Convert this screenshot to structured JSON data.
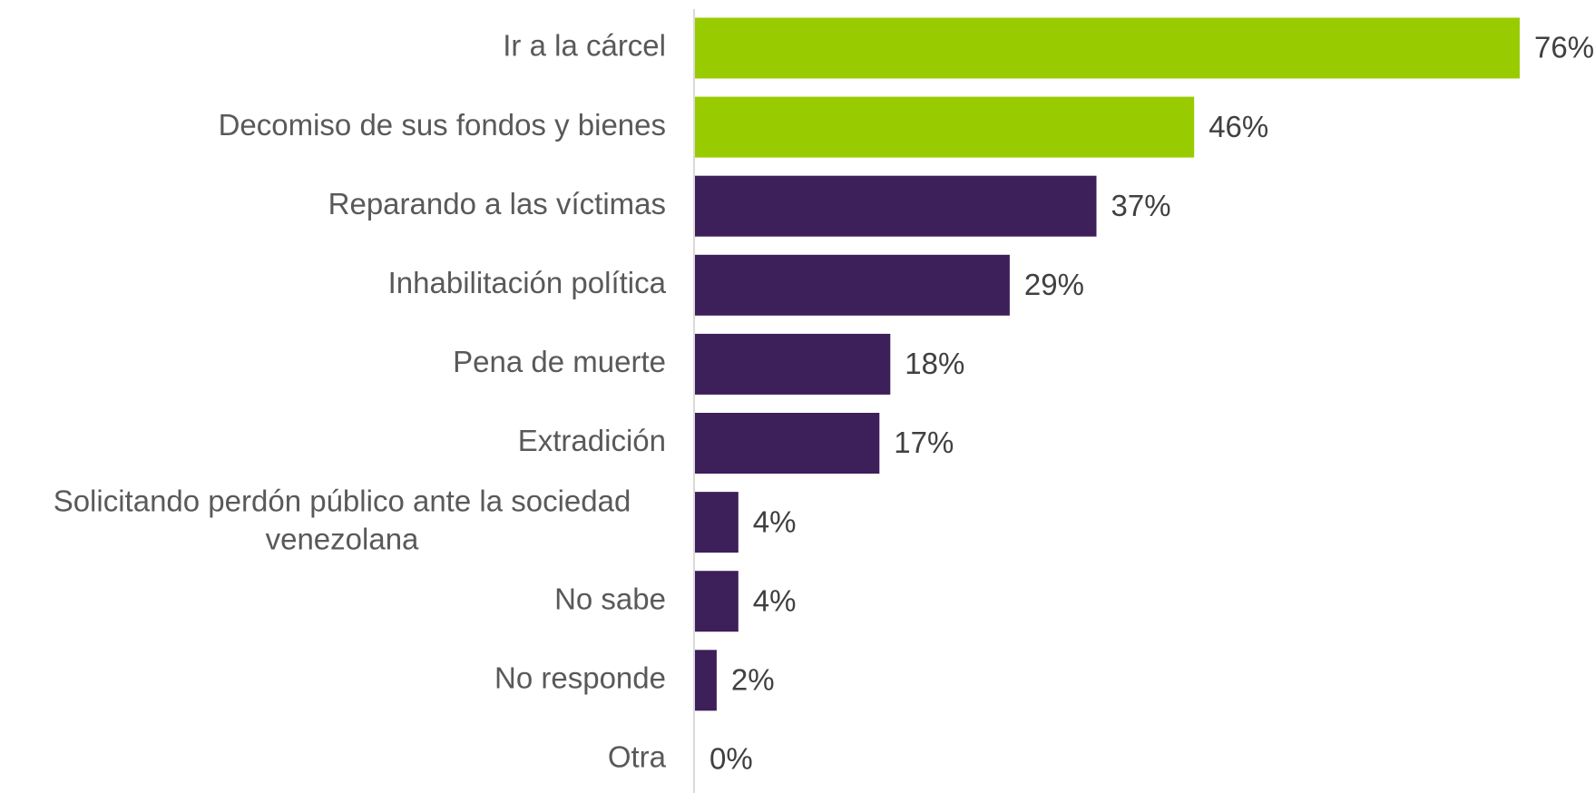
{
  "chart_data": {
    "type": "bar",
    "orientation": "horizontal",
    "categories": [
      "Ir a la cárcel",
      "Decomiso de sus fondos y bienes",
      "Reparando a las víctimas",
      "Inhabilitación política",
      "Pena de muerte",
      "Extradición",
      "Solicitando perdón público ante la sociedad venezolana",
      "No sabe",
      "No responde",
      "Otra"
    ],
    "values": [
      76,
      46,
      37,
      29,
      18,
      17,
      4,
      4,
      2,
      0
    ],
    "value_labels": [
      "76%",
      "46%",
      "37%",
      "29%",
      "18%",
      "17%",
      "4%",
      "4%",
      "2%",
      "0%"
    ],
    "bar_colors": [
      "#99cc00",
      "#99cc00",
      "#3d1f5a",
      "#3d1f5a",
      "#3d1f5a",
      "#3d1f5a",
      "#3d1f5a",
      "#3d1f5a",
      "#3d1f5a",
      "#3d1f5a"
    ],
    "axis_line_color": "#d9d9d9",
    "xlim": [
      0,
      76
    ],
    "grid": false,
    "legend": "none"
  }
}
